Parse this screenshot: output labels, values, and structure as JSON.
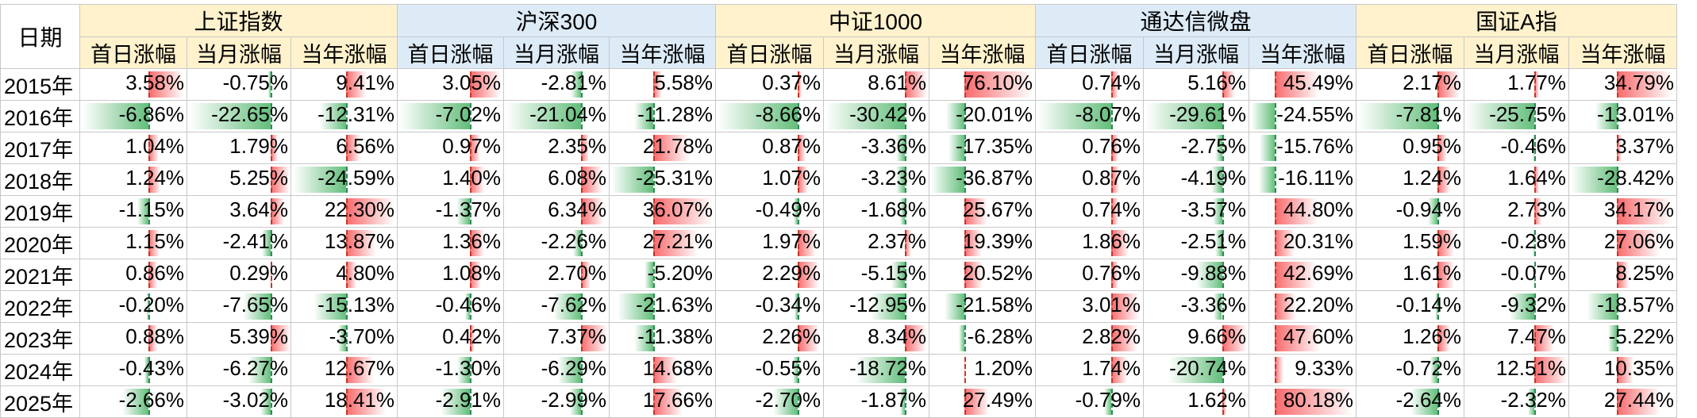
{
  "corner_label": "日期",
  "colors": {
    "header_yellow": "#fff2cc",
    "header_blue": "#ddebf7",
    "positive_bar": "#f4a6a6",
    "positive_bar_dark": "#f8696b",
    "negative_bar": "#63be7b",
    "negative_bar_light": "#b6e3c2"
  },
  "sub_headers": [
    "首日涨幅",
    "当月涨幅",
    "当年涨幅"
  ],
  "groups": [
    {
      "name": "上证指数",
      "bg": "#fff2cc"
    },
    {
      "name": "沪深300",
      "bg": "#ddebf7"
    },
    {
      "name": "中证1000",
      "bg": "#fff2cc"
    },
    {
      "name": "通达信微盘",
      "bg": "#ddebf7"
    },
    {
      "name": "国证A指",
      "bg": "#fff2cc"
    }
  ],
  "rows": [
    {
      "year": "2015年",
      "values": [
        "3.58%",
        "-0.75%",
        "9.41%",
        "3.05%",
        "-2.81%",
        "5.58%",
        "0.37%",
        "8.61%",
        "76.10%",
        "0.74%",
        "5.16%",
        "45.49%",
        "2.17%",
        "1.77%",
        "34.79%"
      ]
    },
    {
      "year": "2016年",
      "values": [
        "-6.86%",
        "-22.65%",
        "-12.31%",
        "-7.02%",
        "-21.04%",
        "-11.28%",
        "-8.66%",
        "-30.42%",
        "-20.01%",
        "-8.07%",
        "-29.61%",
        "-24.55%",
        "-7.81%",
        "-25.75%",
        "-13.01%"
      ]
    },
    {
      "year": "2017年",
      "values": [
        "1.04%",
        "1.79%",
        "6.56%",
        "0.97%",
        "2.35%",
        "21.78%",
        "0.87%",
        "-3.36%",
        "-17.35%",
        "0.76%",
        "-2.75%",
        "-15.76%",
        "0.95%",
        "-0.46%",
        "3.37%"
      ]
    },
    {
      "year": "2018年",
      "values": [
        "1.24%",
        "5.25%",
        "-24.59%",
        "1.40%",
        "6.08%",
        "-25.31%",
        "1.07%",
        "-3.23%",
        "-36.87%",
        "0.87%",
        "-4.19%",
        "-16.11%",
        "1.24%",
        "1.64%",
        "-28.42%"
      ]
    },
    {
      "year": "2019年",
      "values": [
        "-1.15%",
        "3.64%",
        "22.30%",
        "-1.37%",
        "6.34%",
        "36.07%",
        "-0.49%",
        "-1.68%",
        "25.67%",
        "0.74%",
        "-3.57%",
        "44.80%",
        "-0.94%",
        "2.73%",
        "34.17%"
      ]
    },
    {
      "year": "2020年",
      "values": [
        "1.15%",
        "-2.41%",
        "13.87%",
        "1.36%",
        "-2.26%",
        "27.21%",
        "1.97%",
        "2.37%",
        "19.39%",
        "1.86%",
        "-2.51%",
        "20.31%",
        "1.59%",
        "-0.28%",
        "27.06%"
      ]
    },
    {
      "year": "2021年",
      "values": [
        "0.86%",
        "0.29%",
        "4.80%",
        "1.08%",
        "2.70%",
        "-5.20%",
        "2.29%",
        "-5.15%",
        "20.52%",
        "0.76%",
        "-9.88%",
        "42.69%",
        "1.61%",
        "-0.07%",
        "8.25%"
      ]
    },
    {
      "year": "2022年",
      "values": [
        "-0.20%",
        "-7.65%",
        "-15.13%",
        "-0.46%",
        "-7.62%",
        "-21.63%",
        "-0.34%",
        "-12.95%",
        "-21.58%",
        "3.01%",
        "-3.36%",
        "22.20%",
        "-0.14%",
        "-9.32%",
        "-18.57%"
      ]
    },
    {
      "year": "2023年",
      "values": [
        "0.88%",
        "5.39%",
        "-3.70%",
        "0.42%",
        "7.37%",
        "-11.38%",
        "2.26%",
        "8.34%",
        "-6.28%",
        "2.82%",
        "9.66%",
        "47.60%",
        "1.26%",
        "7.47%",
        "-5.22%"
      ]
    },
    {
      "year": "2024年",
      "values": [
        "-0.43%",
        "-6.27%",
        "12.67%",
        "-1.30%",
        "-6.29%",
        "14.68%",
        "-0.55%",
        "-18.72%",
        "1.20%",
        "1.74%",
        "-20.74%",
        "9.33%",
        "-0.72%",
        "12.51%",
        "10.35%"
      ]
    },
    {
      "year": "2025年",
      "values": [
        "-2.66%",
        "-3.02%",
        "18.41%",
        "-2.91%",
        "-2.99%",
        "17.66%",
        "-2.70%",
        "-1.87%",
        "27.49%",
        "-0.79%",
        "1.62%",
        "80.18%",
        "-2.64%",
        "-2.32%",
        "27.44%"
      ]
    }
  ]
}
